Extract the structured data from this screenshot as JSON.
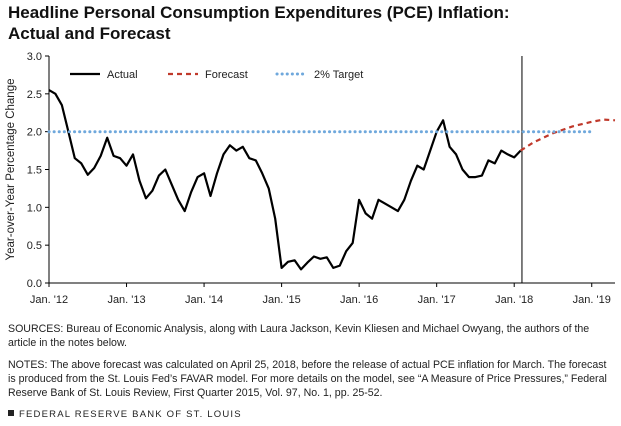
{
  "title": {
    "line1": "Headline Personal Consumption Expenditures (PCE) Inflation:",
    "line2": "Actual and Forecast"
  },
  "chart_data": {
    "type": "line",
    "title": "Headline Personal Consumption Expenditures (PCE) Inflation: Actual and Forecast",
    "xlabel": "",
    "ylabel": "Year-over-Year Percentage Change",
    "ylim": [
      0,
      3.0
    ],
    "xlim": [
      2012,
      2019.3
    ],
    "yticks": [
      "0.0",
      "0.5",
      "1.0",
      "1.5",
      "2.0",
      "2.5",
      "3.0"
    ],
    "xticks": [
      {
        "label": "Jan. '12",
        "x": 2012
      },
      {
        "label": "Jan. '13",
        "x": 2013
      },
      {
        "label": "Jan. '14",
        "x": 2014
      },
      {
        "label": "Jan. '15",
        "x": 2015
      },
      {
        "label": "Jan. '16",
        "x": 2016
      },
      {
        "label": "Jan. '17",
        "x": 2017
      },
      {
        "label": "Jan. '18",
        "x": 2018
      },
      {
        "label": "Jan. '19",
        "x": 2019
      }
    ],
    "vline_x": 2018.1,
    "legend": [
      "Actual",
      "Forecast",
      "2% Target"
    ],
    "series": [
      {
        "name": "Actual",
        "style": "solid",
        "color": "#000000",
        "x": [
          2012.0,
          2012.083,
          2012.167,
          2012.25,
          2012.333,
          2012.417,
          2012.5,
          2012.583,
          2012.667,
          2012.75,
          2012.833,
          2012.917,
          2013.0,
          2013.083,
          2013.167,
          2013.25,
          2013.333,
          2013.417,
          2013.5,
          2013.583,
          2013.667,
          2013.75,
          2013.833,
          2013.917,
          2014.0,
          2014.083,
          2014.167,
          2014.25,
          2014.333,
          2014.417,
          2014.5,
          2014.583,
          2014.667,
          2014.75,
          2014.833,
          2014.917,
          2015.0,
          2015.083,
          2015.167,
          2015.25,
          2015.333,
          2015.417,
          2015.5,
          2015.583,
          2015.667,
          2015.75,
          2015.833,
          2015.917,
          2016.0,
          2016.083,
          2016.167,
          2016.25,
          2016.333,
          2016.417,
          2016.5,
          2016.583,
          2016.667,
          2016.75,
          2016.833,
          2016.917,
          2017.0,
          2017.083,
          2017.167,
          2017.25,
          2017.333,
          2017.417,
          2017.5,
          2017.583,
          2017.667,
          2017.75,
          2017.833,
          2017.917,
          2018.0,
          2018.083
        ],
        "values": [
          2.55,
          2.5,
          2.35,
          2.0,
          1.65,
          1.58,
          1.43,
          1.52,
          1.68,
          1.92,
          1.68,
          1.65,
          1.55,
          1.7,
          1.35,
          1.12,
          1.22,
          1.42,
          1.5,
          1.3,
          1.1,
          0.95,
          1.2,
          1.4,
          1.45,
          1.15,
          1.45,
          1.7,
          1.82,
          1.75,
          1.8,
          1.65,
          1.62,
          1.45,
          1.25,
          0.85,
          0.2,
          0.28,
          0.3,
          0.18,
          0.27,
          0.35,
          0.32,
          0.34,
          0.2,
          0.23,
          0.42,
          0.53,
          1.1,
          0.92,
          0.85,
          1.1,
          1.05,
          1.0,
          0.95,
          1.1,
          1.35,
          1.55,
          1.5,
          1.75,
          2.0,
          2.15,
          1.8,
          1.7,
          1.5,
          1.4,
          1.4,
          1.42,
          1.62,
          1.58,
          1.75,
          1.7,
          1.66,
          1.75
        ]
      },
      {
        "name": "Forecast",
        "style": "dashed",
        "color": "#c0392b",
        "x": [
          2018.083,
          2018.25,
          2018.5,
          2018.75,
          2019.0,
          2019.15,
          2019.3
        ],
        "values": [
          1.75,
          1.86,
          1.98,
          2.07,
          2.13,
          2.16,
          2.15
        ]
      },
      {
        "name": "2% Target",
        "style": "dotted",
        "color": "#6fa8dc",
        "x": [
          2012.0,
          2019.0
        ],
        "values": [
          2.0,
          2.0
        ]
      }
    ]
  },
  "sources_text": "SOURCES: Bureau of Economic Analysis, along with Laura Jackson, Kevin Kliesen and Michael Owyang, the authors of the article in the notes below.",
  "notes_text": "NOTES: The above forecast was calculated on April 25, 2018, before the release of actual PCE inflation for March. The forecast is produced from the St. Louis Fed’s FAVAR model. For more details on the model, see “A Measure of Price Pressures,” Federal Reserve Bank of St. Louis Review, First Quarter 2015, Vol. 97, No. 1, pp. 25-52.",
  "footer_text": "FEDERAL RESERVE BANK OF ST. LOUIS"
}
